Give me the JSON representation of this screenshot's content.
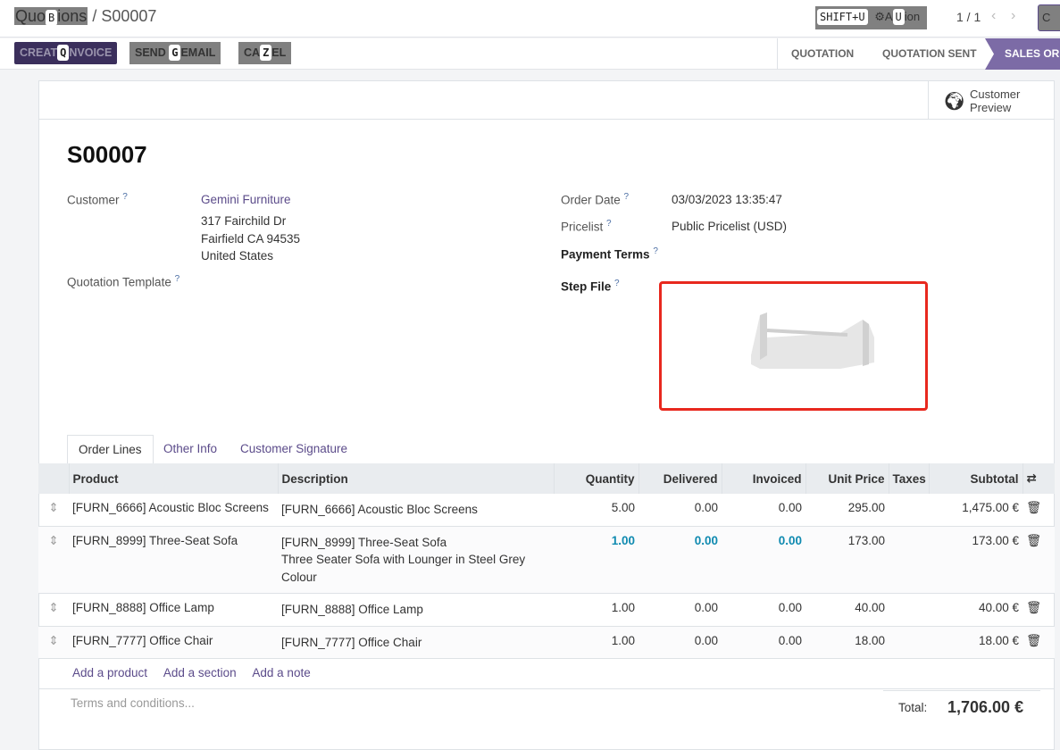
{
  "breadcrumb": {
    "parent": "Quotations",
    "parent_shown_left": "Quo",
    "parent_shown_right": "ions",
    "parent_key": "B",
    "separator": "/",
    "current": "S00007"
  },
  "header_right": {
    "shortcut": "SHIFT+U",
    "action_label_left": "A",
    "action_label_right": "ion",
    "action_key": "U",
    "pager": "1 / 1",
    "extra_button": "C"
  },
  "buttons": [
    {
      "left": "CREAT",
      "key": "Q",
      "right": "NVOICE"
    },
    {
      "left": "SEND ",
      "key": "G",
      "right": "EMAIL"
    },
    {
      "left": "CA",
      "key": "Z",
      "right": "EL"
    }
  ],
  "statusbar": {
    "stages": [
      "QUOTATION",
      "QUOTATION SENT",
      "SALES ORDER"
    ],
    "active": "SALES ORDER",
    "accent": "#7c6ba6"
  },
  "customer_preview": {
    "line1": "Customer",
    "line2": "Preview",
    "icon": "globe-icon"
  },
  "record": {
    "title": "S00007"
  },
  "fields": {
    "customer_label": "Customer",
    "customer_name": "Gemini Furniture",
    "address": [
      "317 Fairchild Dr",
      "Fairfield CA 94535",
      "United States"
    ],
    "quotation_template_label": "Quotation Template",
    "order_date_label": "Order Date",
    "order_date": "03/03/2023 13:35:47",
    "pricelist_label": "Pricelist",
    "pricelist": "Public Pricelist (USD)",
    "payment_terms_label": "Payment Terms",
    "step_file_label": "Step File",
    "help": "?"
  },
  "tabs": [
    "Order Lines",
    "Other Info",
    "Customer Signature"
  ],
  "table": {
    "headers": [
      "Product",
      "Description",
      "Quantity",
      "Delivered",
      "Invoiced",
      "Unit Price",
      "Taxes",
      "Subtotal"
    ],
    "rows": [
      {
        "product": "[FURN_6666] Acoustic Bloc Screens",
        "description": [
          "[FURN_6666] Acoustic Bloc Screens"
        ],
        "quantity": "5.00",
        "delivered": "0.00",
        "invoiced": "0.00",
        "unit_price": "295.00",
        "taxes": "",
        "subtotal": "1,475.00 €",
        "highlight": false
      },
      {
        "product": "[FURN_8999] Three-Seat Sofa",
        "description": [
          "[FURN_8999] Three-Seat Sofa",
          "Three Seater Sofa with Lounger in Steel Grey",
          "Colour"
        ],
        "quantity": "1.00",
        "delivered": "0.00",
        "invoiced": "0.00",
        "unit_price": "173.00",
        "taxes": "",
        "subtotal": "173.00 €",
        "highlight": true
      },
      {
        "product": "[FURN_8888] Office Lamp",
        "description": [
          "[FURN_8888] Office Lamp"
        ],
        "quantity": "1.00",
        "delivered": "0.00",
        "invoiced": "0.00",
        "unit_price": "40.00",
        "taxes": "",
        "subtotal": "40.00 €",
        "highlight": false
      },
      {
        "product": "[FURN_7777] Office Chair",
        "description": [
          "[FURN_7777] Office Chair"
        ],
        "quantity": "1.00",
        "delivered": "0.00",
        "invoiced": "0.00",
        "unit_price": "18.00",
        "taxes": "",
        "subtotal": "18.00 €",
        "highlight": false
      }
    ],
    "add_links": [
      "Add a product",
      "Add a section",
      "Add a note"
    ]
  },
  "footer": {
    "terms_placeholder": "Terms and conditions...",
    "total_label": "Total:",
    "total": "1,706.00 €"
  }
}
